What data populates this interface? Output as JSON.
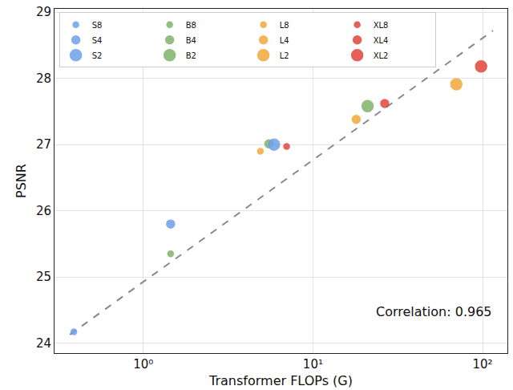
{
  "chart_data": {
    "type": "scatter",
    "xlabel": "Transformer FLOPs (G)",
    "ylabel": "PSNR",
    "log": "x",
    "grid": true,
    "legend": "upper left",
    "xlim": [
      0.3,
      140
    ],
    "xticks": [
      {
        "value": 1,
        "label": "10⁰"
      },
      {
        "value": 10,
        "label": "10¹"
      },
      {
        "value": 100,
        "label": "10²"
      }
    ],
    "ylim": [
      23.85,
      29.05
    ],
    "yticks": [
      24,
      25,
      26,
      27,
      28,
      29
    ],
    "series": [
      {
        "name": "S8",
        "color": "#6fa0e8",
        "marker": "small",
        "x": [
          0.39
        ],
        "values": [
          24.17
        ]
      },
      {
        "name": "B8",
        "color": "#7fb36a",
        "marker": "small",
        "x": [
          1.45
        ],
        "values": [
          25.35
        ]
      },
      {
        "name": "L8",
        "color": "#f2a93b",
        "marker": "small",
        "x": [
          4.9
        ],
        "values": [
          26.9
        ]
      },
      {
        "name": "XL8",
        "color": "#e0453c",
        "marker": "small",
        "x": [
          7.0
        ],
        "values": [
          26.97
        ]
      },
      {
        "name": "S4",
        "color": "#6fa0e8",
        "marker": "medium",
        "x": [
          1.45
        ],
        "values": [
          25.8
        ]
      },
      {
        "name": "B4",
        "color": "#7fb36a",
        "marker": "medium",
        "x": [
          5.5
        ],
        "values": [
          27.01
        ]
      },
      {
        "name": "L4",
        "color": "#f2a93b",
        "marker": "medium",
        "x": [
          18
        ],
        "values": [
          27.38
        ]
      },
      {
        "name": "XL4",
        "color": "#e0453c",
        "marker": "medium",
        "x": [
          26.5
        ],
        "values": [
          27.62
        ]
      },
      {
        "name": "S2",
        "color": "#6fa0e8",
        "marker": "large",
        "x": [
          5.9
        ],
        "values": [
          27.0
        ]
      },
      {
        "name": "B2",
        "color": "#7fb36a",
        "marker": "large",
        "x": [
          21
        ],
        "values": [
          27.58
        ]
      },
      {
        "name": "L2",
        "color": "#f2a93b",
        "marker": "large",
        "x": [
          70
        ],
        "values": [
          27.91
        ]
      },
      {
        "name": "XL2",
        "color": "#e0453c",
        "marker": "large",
        "x": [
          98
        ],
        "values": [
          28.18
        ]
      }
    ],
    "trend_line": {
      "x": [
        0.37,
        115
      ],
      "values": [
        24.13,
        28.72
      ],
      "color": "#888888",
      "line_style": "dashed"
    },
    "annotations": [
      {
        "text": "Correlation: 0.965"
      }
    ]
  }
}
